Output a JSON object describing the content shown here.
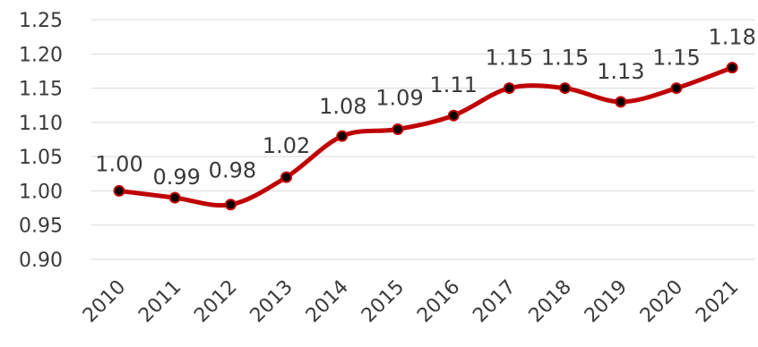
{
  "chart_data": {
    "type": "line",
    "title": "",
    "xlabel": "",
    "ylabel": "",
    "categories": [
      "2010",
      "2011",
      "2012",
      "2013",
      "2014",
      "2015",
      "2016",
      "2017",
      "2018",
      "2019",
      "2020",
      "2021"
    ],
    "values": [
      1.0,
      0.99,
      0.98,
      1.02,
      1.08,
      1.09,
      1.11,
      1.15,
      1.15,
      1.13,
      1.15,
      1.18
    ],
    "data_labels": [
      "1.00",
      "0.99",
      "0.98",
      "1.02",
      "1.08",
      "1.09",
      "1.11",
      "1.15",
      "1.15",
      "1.13",
      "1.15",
      "1.18"
    ],
    "y_ticks": [
      "0.90",
      "0.95",
      "1.00",
      "1.05",
      "1.10",
      "1.15",
      "1.20",
      "1.25"
    ],
    "ylim": [
      0.9,
      1.25
    ],
    "grid": true,
    "smooth": true,
    "legend": "none",
    "colors": {
      "line": "#c00000",
      "marker": "#000000",
      "grid": "#d9d9d9",
      "text": "#3a3a3a"
    }
  }
}
